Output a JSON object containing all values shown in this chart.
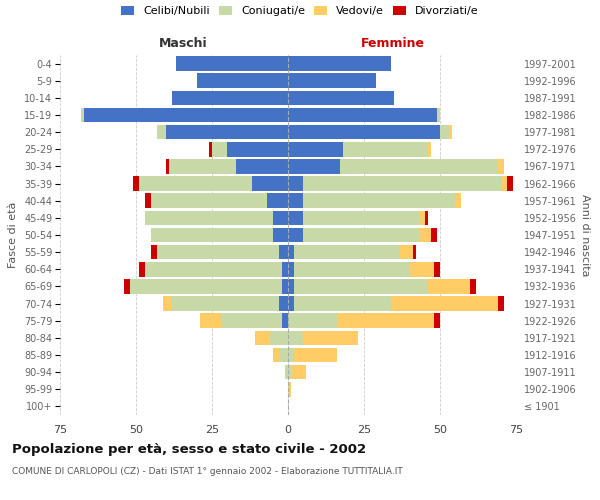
{
  "age_groups": [
    "100+",
    "95-99",
    "90-94",
    "85-89",
    "80-84",
    "75-79",
    "70-74",
    "65-69",
    "60-64",
    "55-59",
    "50-54",
    "45-49",
    "40-44",
    "35-39",
    "30-34",
    "25-29",
    "20-24",
    "15-19",
    "10-14",
    "5-9",
    "0-4"
  ],
  "birth_years": [
    "≤ 1901",
    "1902-1906",
    "1907-1911",
    "1912-1916",
    "1917-1921",
    "1922-1926",
    "1927-1931",
    "1932-1936",
    "1937-1941",
    "1942-1946",
    "1947-1951",
    "1952-1956",
    "1957-1961",
    "1962-1966",
    "1967-1971",
    "1972-1976",
    "1977-1981",
    "1982-1986",
    "1987-1991",
    "1992-1996",
    "1997-2001"
  ],
  "maschi": {
    "celibi": [
      0,
      0,
      0,
      0,
      0,
      2,
      3,
      2,
      2,
      3,
      5,
      5,
      7,
      12,
      17,
      20,
      40,
      67,
      38,
      30,
      37
    ],
    "coniugati": [
      0,
      0,
      1,
      3,
      6,
      20,
      35,
      50,
      45,
      40,
      40,
      42,
      38,
      37,
      22,
      5,
      3,
      1,
      0,
      0,
      0
    ],
    "vedovi": [
      0,
      0,
      0,
      2,
      5,
      7,
      3,
      0,
      0,
      0,
      0,
      0,
      0,
      0,
      0,
      0,
      0,
      0,
      0,
      0,
      0
    ],
    "divorziati": [
      0,
      0,
      0,
      0,
      0,
      0,
      0,
      2,
      2,
      2,
      0,
      0,
      2,
      2,
      1,
      1,
      0,
      0,
      0,
      0,
      0
    ]
  },
  "femmine": {
    "nubili": [
      0,
      0,
      0,
      0,
      0,
      0,
      2,
      2,
      2,
      2,
      5,
      5,
      5,
      5,
      17,
      18,
      50,
      49,
      35,
      29,
      34
    ],
    "coniugate": [
      0,
      0,
      1,
      2,
      5,
      16,
      32,
      44,
      38,
      35,
      38,
      38,
      50,
      65,
      52,
      28,
      3,
      1,
      0,
      0,
      0
    ],
    "vedove": [
      0,
      1,
      5,
      14,
      18,
      32,
      35,
      14,
      8,
      4,
      4,
      2,
      2,
      2,
      2,
      1,
      1,
      0,
      0,
      0,
      0
    ],
    "divorziate": [
      0,
      0,
      0,
      0,
      0,
      2,
      2,
      2,
      2,
      1,
      2,
      1,
      0,
      2,
      0,
      0,
      0,
      0,
      0,
      0,
      0
    ]
  },
  "colors": {
    "celibi_nubili": "#4472C4",
    "coniugati_e": "#C8D9A8",
    "vedovi_e": "#FFCC66",
    "divorziati_e": "#CC0000"
  },
  "xlim": 75,
  "title": "Popolazione per età, sesso e stato civile - 2002",
  "subtitle": "COMUNE DI CARLOPOLI (CZ) - Dati ISTAT 1° gennaio 2002 - Elaborazione TUTTITALIA.IT",
  "ylabel_left": "Fasce di età",
  "ylabel_right": "Anni di nascita",
  "xlabel_left": "Maschi",
  "xlabel_right": "Femmine",
  "maschi_color": "#333333",
  "femmine_color": "#CC0000",
  "background_color": "#ffffff",
  "grid_color": "#cccccc"
}
